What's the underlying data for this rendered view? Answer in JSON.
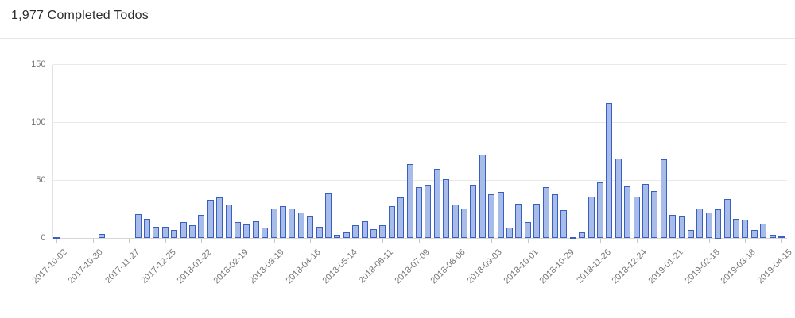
{
  "header": {
    "title": "1,977 Completed Todos"
  },
  "chart_data": {
    "type": "bar",
    "title": "1,977 Completed Todos",
    "total": 1977,
    "unit": "completed todos per week",
    "x": "weekly dates",
    "x_tick_labels": [
      "2017-10-02",
      "2017-10-30",
      "2017-11-27",
      "2017-12-25",
      "2018-01-22",
      "2018-02-19",
      "2018-03-19",
      "2018-04-16",
      "2018-05-14",
      "2018-06-11",
      "2018-07-09",
      "2018-08-06",
      "2018-09-03",
      "2018-10-01",
      "2018-10-29",
      "2018-11-26",
      "2018-12-24",
      "2019-01-21",
      "2019-02-18",
      "2019-03-18",
      "2019-04-15"
    ],
    "x_label_every": 4,
    "values": [
      1,
      0,
      0,
      0,
      0,
      4,
      0,
      0,
      0,
      21,
      17,
      10,
      10,
      7,
      14,
      11,
      20,
      33,
      35,
      29,
      14,
      12,
      15,
      9,
      26,
      28,
      26,
      22,
      19,
      10,
      39,
      3,
      5,
      11,
      15,
      8,
      11,
      28,
      35,
      64,
      44,
      46,
      60,
      51,
      29,
      26,
      46,
      72,
      38,
      40,
      9,
      30,
      14,
      30,
      44,
      38,
      24,
      1,
      5,
      36,
      48,
      117,
      69,
      45,
      36,
      47,
      41,
      68,
      20,
      19,
      7,
      26,
      22,
      25,
      34,
      17,
      16,
      7,
      13,
      3,
      2
    ],
    "y_ticks": [
      0,
      50,
      100,
      150
    ],
    "ylim": [
      0,
      150
    ],
    "grid": "horizontal",
    "legend": "none",
    "colors": {
      "bar_fill": "#a7bce9",
      "bar_border": "#3a5fc1",
      "gridline": "#e8e8e8",
      "axis_text": "#757575",
      "title_text": "#2b2b2e"
    }
  }
}
